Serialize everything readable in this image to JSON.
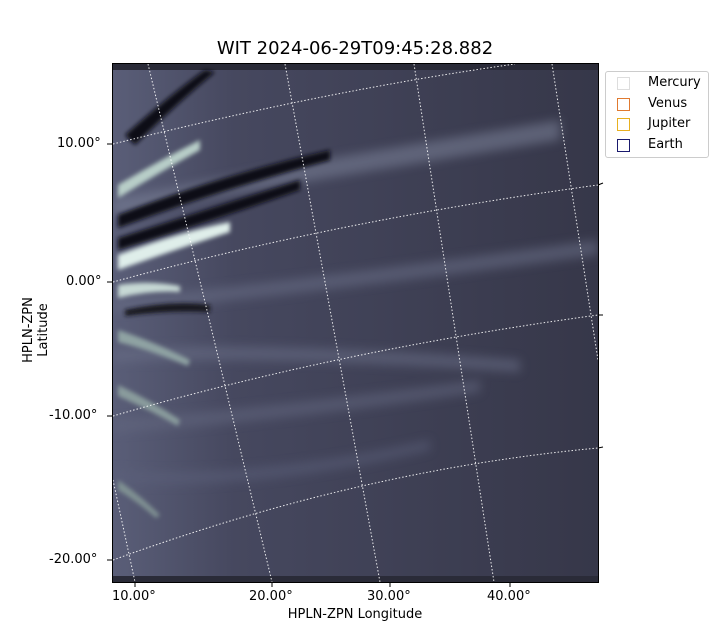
{
  "title": "WIT 2024-06-29T09:45:28.882",
  "xlabel": "HPLN-ZPN Longitude",
  "ylabel": "HPLN-ZPN Latitude",
  "x_ticks": [
    "10.00°",
    "20.00°",
    "30.00°",
    "40.00°"
  ],
  "y_ticks": [
    "10.00°",
    "0.00°",
    "-10.00°",
    "-20.00°"
  ],
  "legend": [
    {
      "label": "Mercury",
      "color": "#dddddd"
    },
    {
      "label": "Venus",
      "color": "#e07a30"
    },
    {
      "label": "Jupiter",
      "color": "#e8b020"
    },
    {
      "label": "Earth",
      "color": "#1a1a6e"
    }
  ],
  "colors": {
    "background": "#3a3b52",
    "streamer": "#cfe1de",
    "grid": "#ffffff"
  }
}
